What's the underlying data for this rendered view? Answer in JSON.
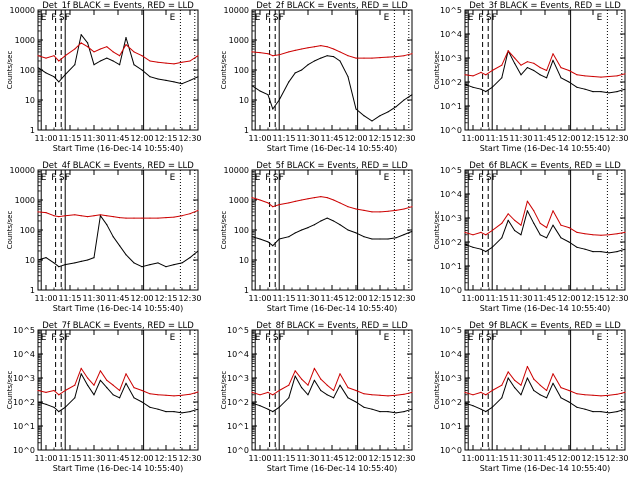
{
  "common": {
    "xlabel": "Start Time (16-Dec-14 10:55:40)",
    "ylabel": "Counts/sec",
    "x_ticks": [
      "11:00",
      "11:15",
      "11:30",
      "11:45",
      "12:00",
      "12:15",
      "12:30"
    ],
    "x_tick_minutes": [
      0,
      15,
      30,
      45,
      60,
      75,
      90
    ],
    "xlim_minutes": [
      -5,
      95
    ],
    "colors": {
      "events": "#000000",
      "lld": "#cc0000"
    },
    "solid_vlines_min": [
      -3,
      12,
      61
    ],
    "dashed_vlines_min": [
      6,
      9.5
    ],
    "dotted_vlines_min": [
      84,
      93
    ]
  },
  "chart_data": [
    {
      "type": "line",
      "title": "Det_1f BLACK = Events, RED = LLD",
      "ylim": [
        1,
        10000
      ],
      "y_ticks": [
        "1",
        "10",
        "100",
        "1000",
        "10000"
      ],
      "yscale": "log",
      "segment_labels": [
        "E",
        "F",
        "S",
        "F",
        "E"
      ],
      "x": [
        -5,
        0,
        5,
        8,
        12,
        18,
        22,
        26,
        30,
        34,
        38,
        42,
        46,
        50,
        55,
        60,
        65,
        70,
        75,
        80,
        85,
        90,
        95
      ],
      "series": [
        {
          "key": "events",
          "values": [
            120,
            80,
            60,
            40,
            70,
            150,
            1500,
            800,
            150,
            200,
            250,
            200,
            150,
            1200,
            150,
            100,
            60,
            50,
            45,
            40,
            35,
            45,
            60
          ]
        },
        {
          "key": "lld",
          "values": [
            300,
            250,
            300,
            200,
            300,
            500,
            800,
            600,
            400,
            500,
            600,
            400,
            300,
            700,
            400,
            300,
            200,
            180,
            170,
            160,
            180,
            200,
            300
          ]
        }
      ]
    },
    {
      "type": "line",
      "title": "Det_2f BLACK = Events, RED = LLD",
      "ylim": [
        1,
        10000
      ],
      "y_ticks": [
        "1",
        "10",
        "100",
        "1000",
        "10000"
      ],
      "yscale": "log",
      "segment_labels": [
        "E",
        "F",
        "S",
        "F",
        "E"
      ],
      "x": [
        -5,
        0,
        5,
        8,
        12,
        18,
        22,
        26,
        30,
        34,
        38,
        42,
        46,
        50,
        55,
        60,
        65,
        70,
        75,
        80,
        85,
        90,
        95
      ],
      "series": [
        {
          "key": "events",
          "values": [
            30,
            20,
            15,
            5,
            10,
            40,
            80,
            100,
            150,
            200,
            250,
            300,
            280,
            200,
            60,
            5,
            3,
            2,
            3,
            4,
            6,
            10,
            15
          ]
        },
        {
          "key": "lld",
          "values": [
            400,
            380,
            350,
            300,
            320,
            400,
            450,
            500,
            550,
            600,
            650,
            600,
            500,
            400,
            300,
            250,
            250,
            250,
            260,
            270,
            280,
            300,
            350
          ]
        }
      ]
    },
    {
      "type": "line",
      "title": "Det_3f BLACK = Events, RED = LLD",
      "ylim": [
        1,
        100000
      ],
      "y_ticks": [
        "10^0",
        "10^1",
        "10^2",
        "10^3",
        "10^4",
        "10^5"
      ],
      "yscale": "log",
      "segment_labels": [
        "E",
        "F",
        "S",
        "F",
        "E"
      ],
      "x": [
        -5,
        0,
        5,
        8,
        12,
        18,
        22,
        26,
        30,
        34,
        38,
        42,
        46,
        50,
        55,
        60,
        65,
        70,
        75,
        80,
        85,
        90,
        95
      ],
      "series": [
        {
          "key": "events",
          "values": [
            80,
            60,
            50,
            40,
            60,
            150,
            2000,
            600,
            200,
            400,
            300,
            200,
            150,
            800,
            150,
            100,
            60,
            50,
            40,
            40,
            35,
            40,
            50
          ]
        },
        {
          "key": "lld",
          "values": [
            200,
            180,
            250,
            200,
            300,
            500,
            2000,
            1000,
            500,
            700,
            600,
            400,
            300,
            1500,
            400,
            300,
            200,
            180,
            170,
            160,
            170,
            180,
            220
          ]
        }
      ]
    },
    {
      "type": "line",
      "title": "Det_4f BLACK = Events, RED = LLD",
      "ylim": [
        1,
        10000
      ],
      "y_ticks": [
        "1",
        "10",
        "100",
        "1000",
        "10000"
      ],
      "yscale": "log",
      "segment_labels": [
        "E",
        "F",
        "S",
        "F",
        "E"
      ],
      "x": [
        -5,
        0,
        5,
        8,
        12,
        18,
        22,
        26,
        30,
        34,
        38,
        42,
        46,
        50,
        55,
        60,
        65,
        70,
        75,
        80,
        85,
        90,
        95
      ],
      "series": [
        {
          "key": "events",
          "values": [
            10,
            12,
            8,
            6,
            7,
            8,
            9,
            10,
            12,
            300,
            150,
            60,
            30,
            15,
            8,
            6,
            7,
            8,
            6,
            7,
            8,
            12,
            20
          ]
        },
        {
          "key": "lld",
          "values": [
            400,
            380,
            300,
            280,
            300,
            320,
            300,
            280,
            300,
            320,
            300,
            280,
            260,
            250,
            250,
            250,
            250,
            250,
            260,
            270,
            300,
            350,
            450
          ]
        }
      ]
    },
    {
      "type": "line",
      "title": "Det_5f BLACK = Events, RED = LLD",
      "ylim": [
        1,
        10000
      ],
      "y_ticks": [
        "1",
        "10",
        "100",
        "1000",
        "10000"
      ],
      "yscale": "log",
      "segment_labels": [
        "E",
        "F",
        "S",
        "F",
        "E"
      ],
      "x": [
        -5,
        0,
        5,
        8,
        12,
        18,
        22,
        26,
        30,
        34,
        38,
        42,
        46,
        50,
        55,
        60,
        65,
        70,
        75,
        80,
        85,
        90,
        95
      ],
      "series": [
        {
          "key": "events",
          "values": [
            60,
            50,
            40,
            30,
            50,
            60,
            80,
            100,
            120,
            150,
            200,
            250,
            200,
            150,
            100,
            80,
            60,
            50,
            50,
            50,
            55,
            70,
            90
          ]
        },
        {
          "key": "lld",
          "values": [
            1200,
            1000,
            800,
            600,
            700,
            800,
            900,
            1000,
            1100,
            1200,
            1300,
            1200,
            1000,
            800,
            600,
            500,
            450,
            400,
            400,
            420,
            450,
            500,
            600
          ]
        }
      ]
    },
    {
      "type": "line",
      "title": "Det_6f BLACK = Events, RED = LLD",
      "ylim": [
        1,
        100000
      ],
      "y_ticks": [
        "10^0",
        "10^1",
        "10^2",
        "10^3",
        "10^4",
        "10^5"
      ],
      "yscale": "log",
      "segment_labels": [
        "E",
        "F",
        "S",
        "F",
        "E"
      ],
      "x": [
        -5,
        0,
        5,
        8,
        12,
        18,
        22,
        26,
        30,
        34,
        38,
        42,
        46,
        50,
        55,
        60,
        65,
        70,
        75,
        80,
        85,
        90,
        95
      ],
      "series": [
        {
          "key": "events",
          "values": [
            80,
            60,
            50,
            40,
            60,
            150,
            800,
            300,
            200,
            2000,
            600,
            200,
            150,
            500,
            150,
            100,
            60,
            50,
            40,
            40,
            35,
            40,
            50
          ]
        },
        {
          "key": "lld",
          "values": [
            250,
            200,
            250,
            200,
            300,
            600,
            1500,
            800,
            500,
            5000,
            2000,
            600,
            400,
            2000,
            500,
            400,
            250,
            220,
            200,
            190,
            200,
            220,
            250
          ]
        }
      ]
    },
    {
      "type": "line",
      "title": "Det_7f BLACK = Events, RED = LLD",
      "ylim": [
        1,
        100000
      ],
      "y_ticks": [
        "10^0",
        "10^1",
        "10^2",
        "10^3",
        "10^4",
        "10^5"
      ],
      "yscale": "log",
      "segment_labels": [
        "E",
        "F",
        "S",
        "F",
        "E"
      ],
      "x": [
        -5,
        0,
        5,
        8,
        12,
        18,
        22,
        26,
        30,
        34,
        38,
        42,
        46,
        50,
        55,
        60,
        65,
        70,
        75,
        80,
        85,
        90,
        95
      ],
      "series": [
        {
          "key": "events",
          "values": [
            100,
            80,
            60,
            40,
            60,
            150,
            1500,
            500,
            200,
            800,
            400,
            200,
            150,
            600,
            150,
            100,
            60,
            50,
            40,
            40,
            35,
            40,
            50
          ]
        },
        {
          "key": "lld",
          "values": [
            300,
            250,
            300,
            200,
            300,
            500,
            2500,
            1000,
            500,
            2000,
            800,
            500,
            300,
            1500,
            400,
            300,
            220,
            200,
            190,
            180,
            190,
            210,
            260
          ]
        }
      ]
    },
    {
      "type": "line",
      "title": "Det_8f BLACK = Events, RED = LLD",
      "ylim": [
        1,
        100000
      ],
      "y_ticks": [
        "10^0",
        "10^1",
        "10^2",
        "10^3",
        "10^4",
        "10^5"
      ],
      "yscale": "log",
      "segment_labels": [
        "E",
        "F",
        "S",
        "F",
        "E"
      ],
      "x": [
        -5,
        0,
        5,
        8,
        12,
        18,
        22,
        26,
        30,
        34,
        38,
        42,
        46,
        50,
        55,
        60,
        65,
        70,
        75,
        80,
        85,
        90,
        95
      ],
      "series": [
        {
          "key": "events",
          "values": [
            90,
            70,
            50,
            40,
            60,
            150,
            1200,
            400,
            200,
            800,
            300,
            200,
            150,
            500,
            150,
            100,
            60,
            50,
            40,
            40,
            35,
            40,
            50
          ]
        },
        {
          "key": "lld",
          "values": [
            250,
            200,
            250,
            200,
            300,
            500,
            2000,
            900,
            500,
            2500,
            900,
            500,
            300,
            1500,
            400,
            300,
            220,
            200,
            190,
            180,
            190,
            210,
            250
          ]
        }
      ]
    },
    {
      "type": "line",
      "title": "Det_9f BLACK = Events, RED = LLD",
      "ylim": [
        1,
        100000
      ],
      "y_ticks": [
        "10^0",
        "10^1",
        "10^2",
        "10^3",
        "10^4",
        "10^5"
      ],
      "yscale": "log",
      "segment_labels": [
        "E",
        "F",
        "S",
        "F",
        "E"
      ],
      "x": [
        -5,
        0,
        5,
        8,
        12,
        18,
        22,
        26,
        30,
        34,
        38,
        42,
        46,
        50,
        55,
        60,
        65,
        70,
        75,
        80,
        85,
        90,
        95
      ],
      "series": [
        {
          "key": "events",
          "values": [
            90,
            70,
            50,
            40,
            60,
            150,
            1000,
            400,
            200,
            1000,
            300,
            200,
            150,
            600,
            150,
            100,
            60,
            50,
            40,
            40,
            35,
            40,
            50
          ]
        },
        {
          "key": "lld",
          "values": [
            250,
            200,
            250,
            200,
            300,
            500,
            1800,
            800,
            500,
            3000,
            900,
            500,
            300,
            1500,
            400,
            300,
            220,
            200,
            190,
            180,
            190,
            210,
            250
          ]
        }
      ]
    }
  ]
}
